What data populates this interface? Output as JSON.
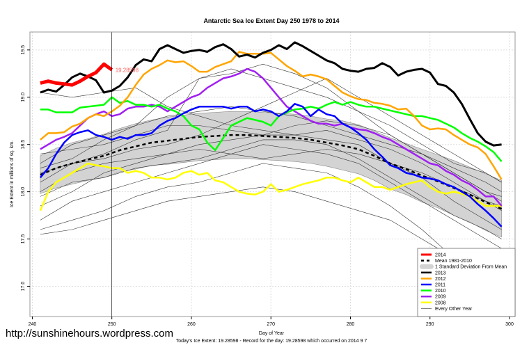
{
  "chart_data": {
    "type": "line",
    "title": "Antarctic Sea Ice Extent Day 250 1978 to 2014",
    "xlabel": "Day of Year",
    "ylabel": "Ice Extent in millions of sq. km.",
    "xlim": [
      239.7,
      300.7
    ],
    "ylim": [
      16.68,
      19.69
    ],
    "xticks": [
      240,
      250,
      260,
      270,
      280,
      290,
      300
    ],
    "yticks": [
      17.0,
      17.5,
      18.0,
      18.5,
      19.0,
      19.5
    ],
    "ytick_labels": [
      "17.0",
      "17.5",
      "18.0",
      "18.5",
      "19.0",
      "19.5"
    ],
    "grid": true,
    "current_day_marker": 250,
    "point_label": "19.28598",
    "legend_position": "bottom-right",
    "mean": {
      "name": "Mean 1981-2010",
      "x": [
        241,
        243,
        245,
        247,
        249,
        251,
        253,
        255,
        257,
        259,
        261,
        263,
        265,
        267,
        269,
        271,
        273,
        275,
        277,
        279,
        281,
        283,
        285,
        287,
        289,
        291,
        293,
        295,
        297,
        299
      ],
      "values": [
        18.18,
        18.25,
        18.3,
        18.34,
        18.38,
        18.44,
        18.48,
        18.52,
        18.54,
        18.56,
        18.58,
        18.59,
        18.6,
        18.6,
        18.59,
        18.58,
        18.57,
        18.55,
        18.52,
        18.49,
        18.45,
        18.38,
        18.3,
        18.24,
        18.17,
        18.11,
        18.04,
        17.97,
        17.89,
        17.82
      ],
      "sd": [
        0.2,
        0.21,
        0.22,
        0.22,
        0.23,
        0.23,
        0.24,
        0.24,
        0.25,
        0.25,
        0.25,
        0.25,
        0.25,
        0.25,
        0.25,
        0.25,
        0.25,
        0.25,
        0.25,
        0.26,
        0.26,
        0.26,
        0.27,
        0.27,
        0.28,
        0.28,
        0.29,
        0.29,
        0.3,
        0.3
      ],
      "sd_name": "1 Standard Deviation From Mean"
    },
    "series": [
      {
        "name": "2014",
        "color": "#ff0000",
        "width": 5,
        "x0": 241,
        "values": [
          19.15,
          19.17,
          19.15,
          19.14,
          19.13,
          19.17,
          19.22,
          19.26,
          19.35,
          19.29
        ]
      },
      {
        "name": "2013",
        "color": "#000000",
        "width": 3,
        "x0": 241,
        "values": [
          19.05,
          19.08,
          19.06,
          19.13,
          19.21,
          19.25,
          19.22,
          19.18,
          19.05,
          19.07,
          19.12,
          19.21,
          19.34,
          19.4,
          19.38,
          19.51,
          19.55,
          19.51,
          19.47,
          19.49,
          19.5,
          19.48,
          19.53,
          19.56,
          19.51,
          19.43,
          19.45,
          19.42,
          19.47,
          19.5,
          19.55,
          19.51,
          19.58,
          19.54,
          19.49,
          19.44,
          19.39,
          19.36,
          19.3,
          19.28,
          19.27,
          19.3,
          19.31,
          19.36,
          19.32,
          19.23,
          19.27,
          19.29,
          19.3,
          19.26,
          19.14,
          19.12,
          19.05,
          18.93,
          18.77,
          18.62,
          18.53,
          18.49,
          18.5
        ]
      },
      {
        "name": "2012",
        "color": "#ffa500",
        "width": 2.5,
        "x0": 241,
        "values": [
          18.55,
          18.62,
          18.62,
          18.63,
          18.69,
          18.72,
          18.78,
          18.82,
          18.8,
          18.85,
          18.91,
          19.0,
          19.13,
          19.24,
          19.3,
          19.34,
          19.39,
          19.37,
          19.38,
          19.33,
          19.27,
          19.27,
          19.32,
          19.35,
          19.38,
          19.48,
          19.46,
          19.46,
          19.46,
          19.47,
          19.4,
          19.33,
          19.28,
          19.22,
          19.24,
          19.22,
          19.19,
          19.12,
          19.05,
          19.01,
          18.98,
          18.97,
          18.94,
          18.93,
          18.91,
          18.87,
          18.88,
          18.8,
          18.7,
          18.66,
          18.67,
          18.66,
          18.6,
          18.55,
          18.5,
          18.47,
          18.4,
          18.27,
          18.13
        ]
      },
      {
        "name": "2011",
        "color": "#0000ff",
        "width": 2.5,
        "x0": 241,
        "values": [
          18.15,
          18.25,
          18.4,
          18.52,
          18.6,
          18.63,
          18.65,
          18.6,
          18.58,
          18.55,
          18.58,
          18.56,
          18.6,
          18.6,
          18.62,
          18.7,
          18.75,
          18.78,
          18.83,
          18.87,
          18.9,
          18.9,
          18.9,
          18.9,
          18.88,
          18.9,
          18.9,
          18.85,
          18.87,
          18.85,
          18.8,
          18.85,
          18.93,
          18.9,
          18.8,
          18.87,
          18.82,
          18.8,
          18.72,
          18.68,
          18.62,
          18.55,
          18.45,
          18.37,
          18.28,
          18.25,
          18.2,
          18.18,
          18.15,
          18.14,
          18.12,
          18.08,
          18.05,
          18.0,
          17.95,
          17.87,
          17.8,
          17.72,
          17.63
        ]
      },
      {
        "name": "2010",
        "color": "#00ff00",
        "width": 2.5,
        "x0": 241,
        "values": [
          18.87,
          18.87,
          18.84,
          18.84,
          18.84,
          18.89,
          18.9,
          18.91,
          18.92,
          19.0,
          18.94,
          18.96,
          18.92,
          18.92,
          18.9,
          18.92,
          18.88,
          18.85,
          18.8,
          18.7,
          18.66,
          18.52,
          18.44,
          18.57,
          18.7,
          18.74,
          18.78,
          18.76,
          18.74,
          18.7,
          18.8,
          18.84,
          18.87,
          18.88,
          18.9,
          18.88,
          18.92,
          18.95,
          18.92,
          18.95,
          18.92,
          18.9,
          18.9,
          18.88,
          18.86,
          18.84,
          18.82,
          18.8,
          18.8,
          18.78,
          18.76,
          18.72,
          18.68,
          18.62,
          18.57,
          18.53,
          18.48,
          18.42,
          18.32
        ]
      },
      {
        "name": "2009",
        "color": "#a020f0",
        "width": 2.5,
        "x0": 241,
        "values": [
          18.45,
          18.5,
          18.55,
          18.58,
          18.62,
          18.7,
          18.78,
          18.82,
          18.85,
          18.8,
          18.82,
          18.88,
          18.9,
          18.9,
          18.92,
          18.9,
          18.85,
          18.9,
          18.95,
          19.0,
          19.03,
          19.1,
          19.15,
          19.2,
          19.22,
          19.25,
          19.3,
          19.27,
          19.2,
          19.1,
          19.0,
          18.9,
          18.85,
          18.8,
          18.75,
          18.72,
          18.72,
          18.7,
          18.72,
          18.68,
          18.66,
          18.65,
          18.62,
          18.58,
          18.55,
          18.5,
          18.45,
          18.4,
          18.35,
          18.3,
          18.28,
          18.22,
          18.18,
          18.12,
          18.08,
          18.02,
          17.95,
          17.95,
          17.85
        ]
      },
      {
        "name": "2008",
        "color": "#ffff00",
        "width": 2.5,
        "x0": 241,
        "values": [
          17.8,
          18.0,
          18.1,
          18.15,
          18.2,
          18.25,
          18.3,
          18.28,
          18.27,
          18.25,
          18.25,
          18.2,
          18.22,
          18.2,
          18.15,
          18.15,
          18.13,
          18.15,
          18.2,
          18.22,
          18.18,
          18.2,
          18.12,
          18.1,
          18.05,
          18.0,
          17.98,
          17.97,
          18.0,
          18.08,
          18.0,
          18.02,
          18.05,
          18.08,
          18.1,
          18.12,
          18.15,
          18.15,
          18.12,
          18.1,
          18.15,
          18.1,
          18.05,
          18.05,
          18.02,
          18.05,
          18.08,
          18.1,
          18.12,
          18.05,
          18.0,
          17.98,
          18.0,
          17.98,
          17.95,
          17.9,
          17.85,
          17.85,
          17.85
        ]
      }
    ],
    "other_years": {
      "name": "Every Other Year",
      "x": [
        241,
        245,
        249,
        253,
        257,
        261,
        265,
        269,
        273,
        277,
        281,
        285,
        289,
        293,
        297,
        299
      ],
      "series": [
        [
          19.05,
          19.0,
          19.05,
          19.1,
          18.9,
          18.8,
          18.7,
          18.65,
          18.6,
          18.55,
          18.5,
          18.3,
          18.15,
          17.9,
          17.7,
          17.6
        ],
        [
          18.3,
          18.5,
          18.6,
          18.7,
          18.8,
          18.85,
          18.9,
          18.85,
          18.8,
          18.7,
          18.6,
          18.5,
          18.4,
          18.25,
          18.1,
          18.0
        ],
        [
          18.1,
          18.3,
          18.4,
          18.55,
          18.65,
          19.2,
          19.25,
          19.35,
          19.25,
          19.1,
          18.85,
          18.7,
          18.5,
          18.3,
          18.2,
          18.1
        ],
        [
          17.7,
          17.9,
          18.0,
          18.1,
          18.2,
          18.3,
          18.4,
          18.5,
          18.45,
          18.4,
          18.3,
          18.1,
          17.9,
          17.7,
          17.5,
          17.4
        ],
        [
          17.55,
          17.6,
          17.7,
          17.8,
          17.9,
          17.95,
          18.0,
          18.05,
          18.0,
          17.9,
          17.8,
          17.7,
          17.5,
          17.3,
          17.2,
          17.15
        ],
        [
          17.85,
          18.0,
          18.2,
          18.3,
          18.4,
          18.5,
          18.55,
          18.6,
          18.7,
          18.75,
          18.7,
          18.6,
          18.4,
          18.2,
          18.0,
          17.9
        ],
        [
          18.2,
          18.3,
          18.35,
          18.45,
          18.5,
          18.6,
          18.75,
          18.9,
          19.05,
          19.2,
          19.0,
          18.8,
          18.6,
          18.4,
          18.2,
          18.1
        ],
        [
          17.95,
          18.1,
          18.15,
          18.25,
          18.3,
          18.35,
          18.45,
          18.55,
          18.55,
          18.5,
          18.35,
          18.15,
          17.95,
          17.75,
          17.6,
          17.5
        ],
        [
          18.4,
          18.45,
          18.5,
          18.6,
          18.7,
          18.7,
          18.65,
          18.6,
          18.6,
          18.65,
          18.55,
          18.45,
          18.3,
          18.1,
          17.9,
          17.8
        ],
        [
          17.6,
          17.7,
          17.8,
          17.95,
          18.05,
          18.1,
          18.2,
          18.3,
          18.25,
          18.2,
          18.05,
          17.85,
          17.6,
          17.3,
          17.05,
          16.95
        ],
        [
          18.0,
          18.2,
          18.3,
          18.35,
          18.4,
          18.45,
          18.4,
          18.35,
          18.4,
          18.45,
          18.4,
          18.3,
          18.2,
          18.05,
          17.9,
          17.85
        ],
        [
          18.25,
          18.35,
          18.55,
          18.7,
          19.0,
          19.2,
          19.3,
          19.2,
          19.1,
          19.0,
          18.85,
          18.6,
          18.4,
          18.2,
          18.0,
          17.95
        ]
      ]
    }
  },
  "footer": {
    "url": "http://sunshinehours.wordpress.com",
    "note": "Today's Ice Extent: 19.28598  - Record for the day: 19.28598 which occurred on 2014 9 7"
  }
}
